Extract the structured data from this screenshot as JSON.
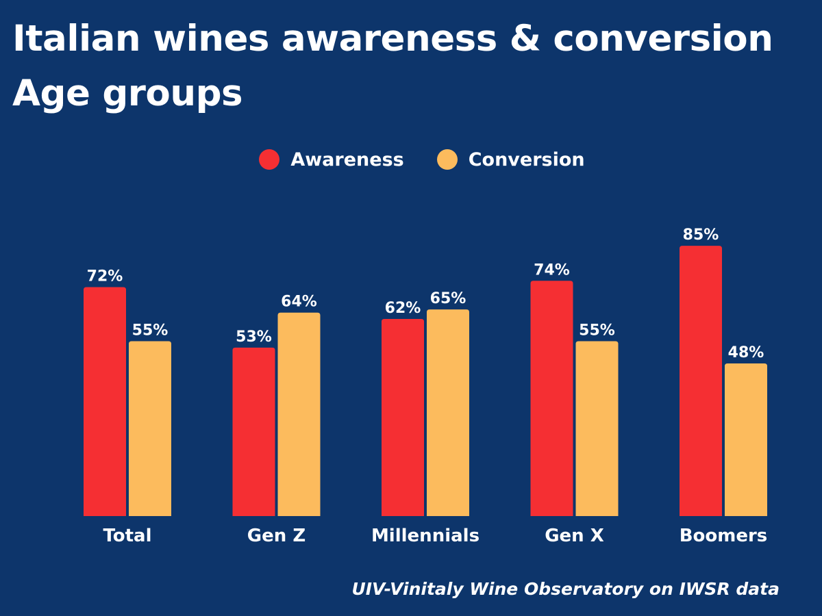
{
  "colors": {
    "background": "#0d356b",
    "awareness": "#f52f33",
    "conversion": "#fcbb5d",
    "text": "#ffffff"
  },
  "chart_data": {
    "type": "bar",
    "title": "Italian wines awareness & conversion",
    "subtitle": "Age groups",
    "categories": [
      "Total",
      "Gen Z",
      "Millennials",
      "Gen X",
      "Boomers"
    ],
    "series": [
      {
        "name": "Awareness",
        "color": "#f52f33",
        "values": [
          72,
          53,
          62,
          74,
          85
        ],
        "labels": [
          "72%",
          "53%",
          "62%",
          "74%",
          "85%"
        ]
      },
      {
        "name": "Conversion",
        "color": "#fcbb5d",
        "values": [
          55,
          64,
          65,
          55,
          48
        ],
        "labels": [
          "55%",
          "64%",
          "65%",
          "55%",
          "48%"
        ]
      }
    ],
    "xlabel": "",
    "ylabel": "",
    "ylim": [
      0,
      100
    ],
    "grid": false,
    "legend_position": "top-center",
    "source": "UIV-Vinitaly Wine Observatory on IWSR data"
  }
}
